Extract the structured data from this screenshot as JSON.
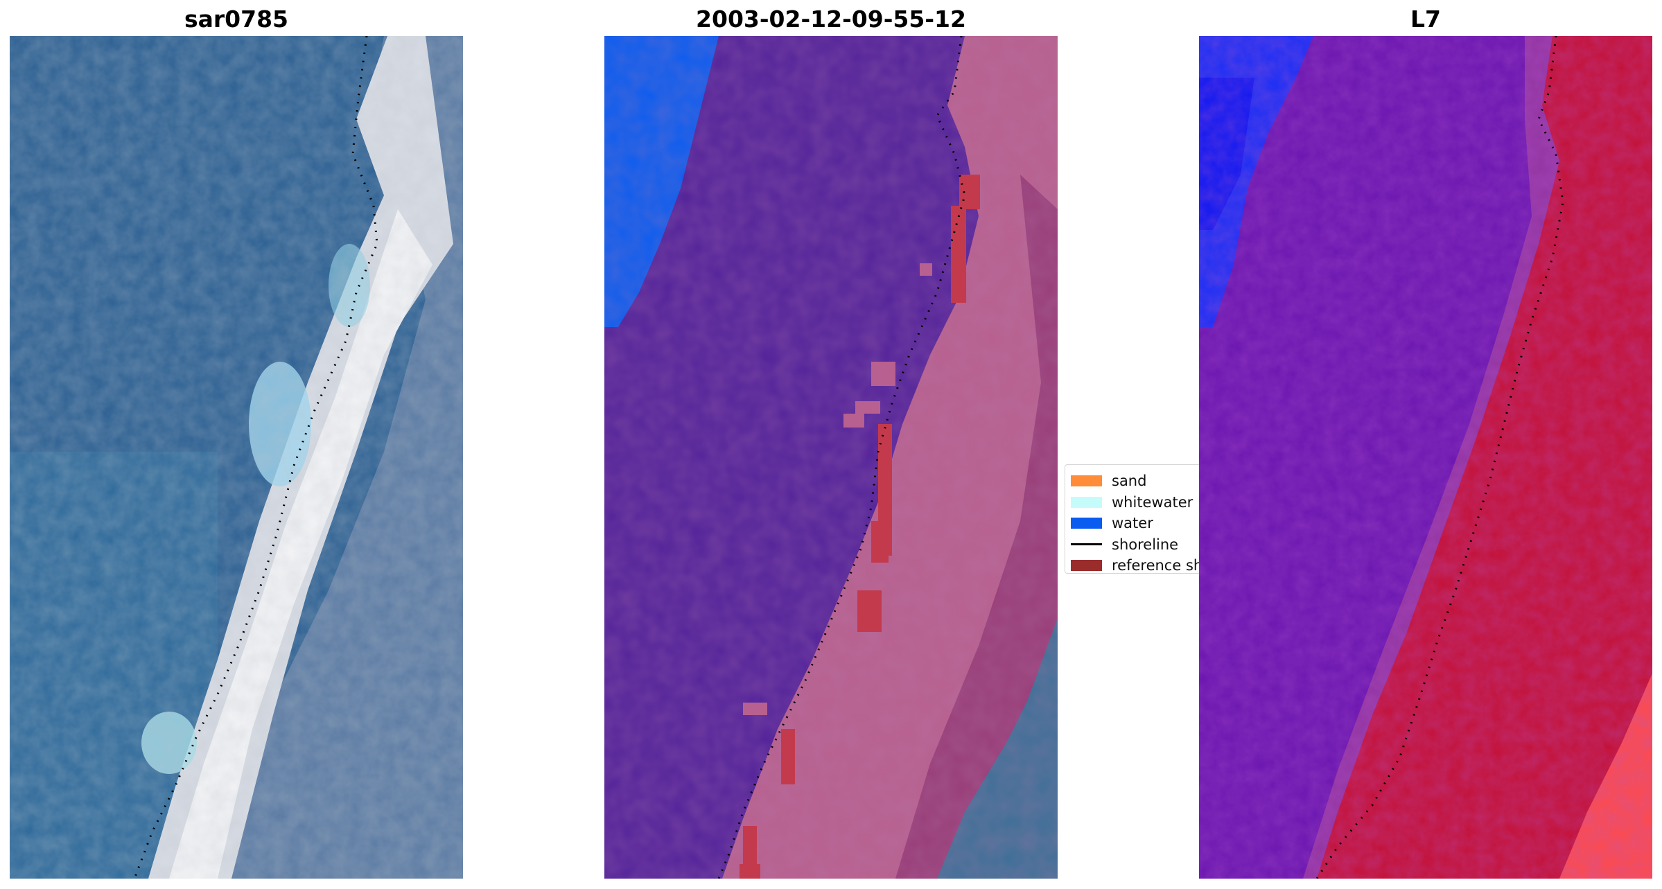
{
  "panels": [
    {
      "id": "rgb",
      "title": "sar0785"
    },
    {
      "id": "classified",
      "title": "2003-02-12-09-55-12"
    },
    {
      "id": "index",
      "title": "L7"
    }
  ],
  "legend": {
    "items": [
      {
        "label": "sand",
        "kind": "patch",
        "color": "#ff8c38"
      },
      {
        "label": "whitewater",
        "kind": "patch",
        "color": "#c6fbfb"
      },
      {
        "label": "water",
        "kind": "patch",
        "color": "#0a5cf0"
      },
      {
        "label": "shoreline",
        "kind": "line",
        "color": "#000000"
      },
      {
        "label": "reference sh",
        "kind": "patch",
        "color": "#9b2c2c"
      }
    ]
  },
  "colors": {
    "sea_rgb": "#2f6496",
    "beach_rgb": "#e4e6ea",
    "classified_water": "#52229a",
    "classified_land": "#b85c8e",
    "index_water": "#6a15b0",
    "index_land": "#c41035",
    "shoreline": "#000000"
  }
}
